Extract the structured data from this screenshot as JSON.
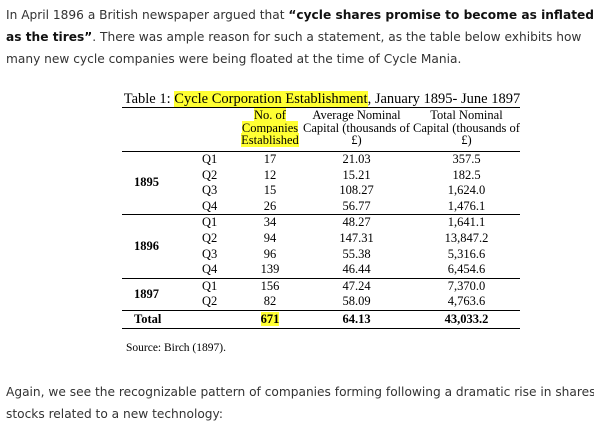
{
  "intro": {
    "before": "In April 1896 a British newspaper argued that ",
    "quote": "“cycle shares promise to become as inflated as the tires”",
    "after": ". There was ample reason for such a statement, as the table below exhibits how many new cycle companies were being floated at the time of Cycle Mania."
  },
  "table": {
    "title_before": "Table 1: ",
    "title_highlight": "Cycle Corporation Establishment",
    "title_after": ", January 1895- June 1897",
    "headers": [
      "No. of Companies Established",
      "Average Nominal Capital (thousands of £)",
      "Total Nominal Capital (thousands of £)"
    ],
    "groups": [
      {
        "year": "1895",
        "rows": [
          [
            "Q1",
            "17",
            "21.03",
            "357.5"
          ],
          [
            "Q2",
            "12",
            "15.21",
            "182.5"
          ],
          [
            "Q3",
            "15",
            "108.27",
            "1,624.0"
          ],
          [
            "Q4",
            "26",
            "56.77",
            "1,476.1"
          ]
        ]
      },
      {
        "year": "1896",
        "rows": [
          [
            "Q1",
            "34",
            "48.27",
            "1,641.1"
          ],
          [
            "Q2",
            "94",
            "147.31",
            "13,847.2"
          ],
          [
            "Q3",
            "96",
            "55.38",
            "5,316.6"
          ],
          [
            "Q4",
            "139",
            "46.44",
            "6,454.6"
          ]
        ]
      },
      {
        "year": "1897",
        "rows": [
          [
            "Q1",
            "156",
            "47.24",
            "7,370.0"
          ],
          [
            "Q2",
            "82",
            "58.09",
            "4,763.6"
          ]
        ]
      }
    ],
    "total": [
      "Total",
      "671",
      "64.13",
      "43,033.2"
    ],
    "source": "Source: Birch (1897)."
  },
  "outro": "Again, we see the recognizable pattern of companies forming following a dramatic rise in shares of stocks related to a new technology:"
}
